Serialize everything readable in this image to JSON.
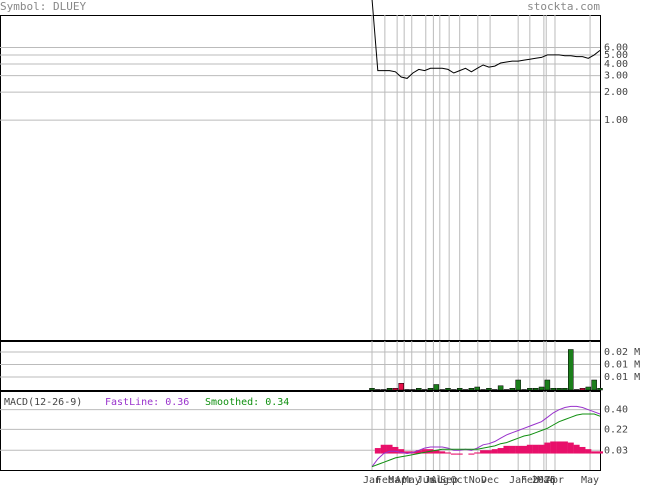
{
  "header": {
    "symbol": "Symbol: DLUEY",
    "site": "stockta.com"
  },
  "chart_data": [
    {
      "type": "line",
      "log_scale": true,
      "ylim": [
        0.0044,
        13.4
      ],
      "yticks": [
        {
          "value": 6,
          "label": "6.00"
        },
        {
          "value": 5,
          "label": "5.00"
        },
        {
          "value": 4,
          "label": "4.00"
        },
        {
          "value": 3,
          "label": "3.00"
        },
        {
          "value": 2,
          "label": "2.00"
        },
        {
          "value": 1,
          "label": "1.00"
        }
      ],
      "xlim": [
        0,
        39
      ],
      "xticks": [
        {
          "value": 0,
          "label": "Jan"
        },
        {
          "value": 2.2,
          "label": "Feb"
        },
        {
          "value": 4.3,
          "label": "Mar"
        },
        {
          "value": 5.5,
          "label": "Apr"
        },
        {
          "value": 6.8,
          "label": "May"
        },
        {
          "value": 9.2,
          "label": "Jun"
        },
        {
          "value": 10.5,
          "label": "Jul"
        },
        {
          "value": 11.6,
          "label": "Aug"
        },
        {
          "value": 13.2,
          "label": "Sep"
        },
        {
          "value": 15,
          "label": "Oct"
        },
        {
          "value": 18.1,
          "label": "Nov"
        },
        {
          "value": 20.2,
          "label": "Dec"
        },
        {
          "value": 25,
          "label": "Jan"
        },
        {
          "value": 27,
          "label": "Feb"
        },
        {
          "value": 29.4,
          "label": "2025"
        },
        {
          "value": 29.8,
          "label": "Mar"
        },
        {
          "value": 31.3,
          "label": "Apr"
        },
        {
          "value": 37.3,
          "label": "May"
        }
      ],
      "series": [
        {
          "name": "Price",
          "color": "#000000",
          "values": [
            20,
            3.4,
            3.4,
            3.4,
            3.3,
            2.9,
            2.8,
            3.2,
            3.5,
            3.4,
            3.6,
            3.6,
            3.6,
            3.5,
            3.2,
            3.4,
            3.6,
            3.3,
            3.6,
            3.9,
            3.7,
            3.8,
            4.1,
            4.2,
            4.3,
            4.3,
            4.4,
            4.5,
            4.6,
            4.7,
            5.0,
            5.0,
            5.0,
            4.9,
            4.9,
            4.8,
            4.8,
            4.6,
            5.0,
            5.6
          ]
        }
      ]
    },
    {
      "type": "bar",
      "ylim": [
        0.0048,
        0.0244
      ],
      "yticks": [
        {
          "value": 0.02,
          "label": "0.02 M"
        },
        {
          "value": 0.015,
          "label": "0.01 M"
        },
        {
          "value": 0.01,
          "label": "0.01 M"
        }
      ],
      "color": "#1b7f1b",
      "down_color": "#e8104a",
      "red_bars": [
        4,
        5,
        36
      ],
      "values": [
        0.0055,
        0.005,
        0.005,
        0.0055,
        0.0055,
        0.0075,
        0.005,
        0.005,
        0.0055,
        0.005,
        0.0055,
        0.007,
        0.005,
        0.0055,
        0.005,
        0.0055,
        0.005,
        0.0055,
        0.006,
        0.005,
        0.0055,
        0.005,
        0.0065,
        0.005,
        0.0055,
        0.0088,
        0.005,
        0.0055,
        0.0055,
        0.006,
        0.0088,
        0.0055,
        0.0055,
        0.0055,
        0.021,
        0.005,
        0.0055,
        0.006,
        0.0088,
        0.0055
      ]
    },
    {
      "type": "macd",
      "title": "MACD(12-26-9)",
      "ylim": [
        -0.15,
        0.57
      ],
      "yticks": [
        {
          "value": 0.4,
          "label": "0.40"
        },
        0.22,
        0.03
      ],
      "series": [
        {
          "name": "FastLine: 0.36",
          "color": "#9932cc",
          "values": [
            -0.12,
            -0.05,
            0,
            0.02,
            0.02,
            0.01,
            0,
            0.01,
            0.03,
            0.05,
            0.06,
            0.06,
            0.06,
            0.05,
            0.03,
            0.03,
            0.04,
            0.03,
            0.05,
            0.08,
            0.09,
            0.11,
            0.14,
            0.17,
            0.19,
            0.21,
            0.23,
            0.25,
            0.27,
            0.29,
            0.33,
            0.37,
            0.4,
            0.42,
            0.43,
            0.43,
            0.42,
            0.4,
            0.38,
            0.36
          ]
        },
        {
          "name": "Smoothed: 0.34",
          "color": "#109010",
          "values": [
            -0.12,
            -0.1,
            -0.08,
            -0.06,
            -0.04,
            -0.03,
            -0.02,
            -0.01,
            0,
            0.01,
            0.02,
            0.03,
            0.04,
            0.04,
            0.04,
            0.04,
            0.04,
            0.04,
            0.04,
            0.05,
            0.06,
            0.07,
            0.09,
            0.1,
            0.12,
            0.14,
            0.16,
            0.17,
            0.19,
            0.21,
            0.23,
            0.26,
            0.29,
            0.31,
            0.33,
            0.35,
            0.36,
            0.36,
            0.36,
            0.34
          ]
        }
      ],
      "histogram": {
        "color": "#e8106a",
        "values": [
          0,
          0.05,
          0.08,
          0.08,
          0.06,
          0.04,
          0.02,
          0.02,
          0.03,
          0.04,
          0.04,
          0.03,
          0.02,
          0.01,
          -0.01,
          -0.01,
          0,
          -0.01,
          0.01,
          0.03,
          0.03,
          0.04,
          0.05,
          0.07,
          0.07,
          0.07,
          0.07,
          0.08,
          0.08,
          0.08,
          0.1,
          0.11,
          0.11,
          0.11,
          0.1,
          0.08,
          0.06,
          0.04,
          0.02,
          0.02
        ]
      }
    }
  ]
}
